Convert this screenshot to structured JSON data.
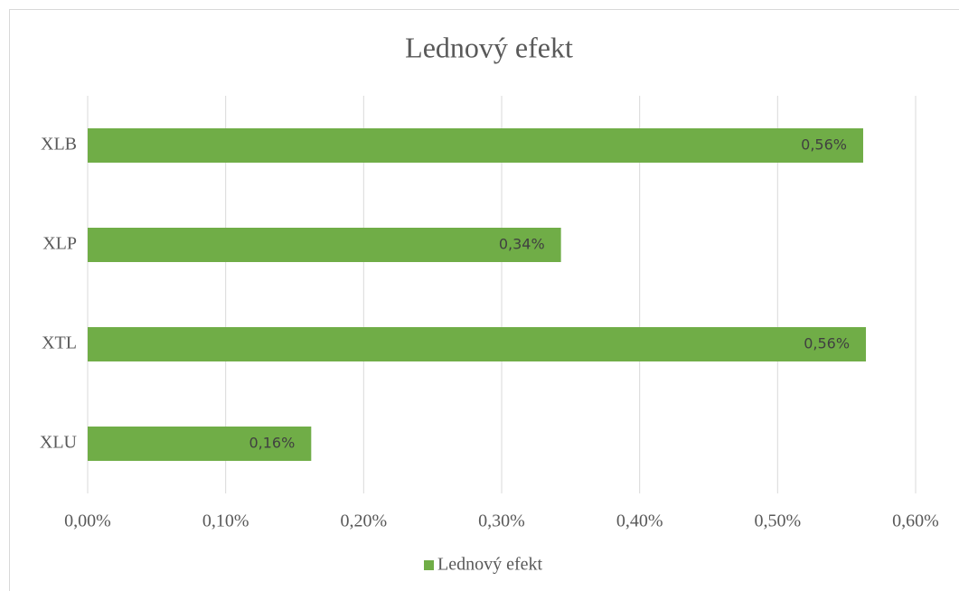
{
  "chart_data": {
    "type": "bar",
    "orientation": "horizontal",
    "title": "Lednový efekt",
    "categories": [
      "XLB",
      "XLP",
      "XTL",
      "XLU"
    ],
    "series": [
      {
        "name": "Lednový efekt",
        "color": "#70ad47",
        "values": [
          0.562,
          0.343,
          0.564,
          0.162
        ],
        "value_labels": [
          "0,56%",
          "0,34%",
          "0,56%",
          "0,16%"
        ]
      }
    ],
    "xlim": [
      0,
      0.6
    ],
    "xticks": [
      {
        "value": 0,
        "label": "0,00%"
      },
      {
        "value": 0.1,
        "label": "0,10%"
      },
      {
        "value": 0.2,
        "label": "0,20%"
      },
      {
        "value": 0.3,
        "label": "0,30%"
      },
      {
        "value": 0.4,
        "label": "0,40%"
      },
      {
        "value": 0.5,
        "label": "0,50%"
      },
      {
        "value": 0.6,
        "label": "0,60%"
      }
    ],
    "grid": true,
    "legend": "bottom"
  }
}
